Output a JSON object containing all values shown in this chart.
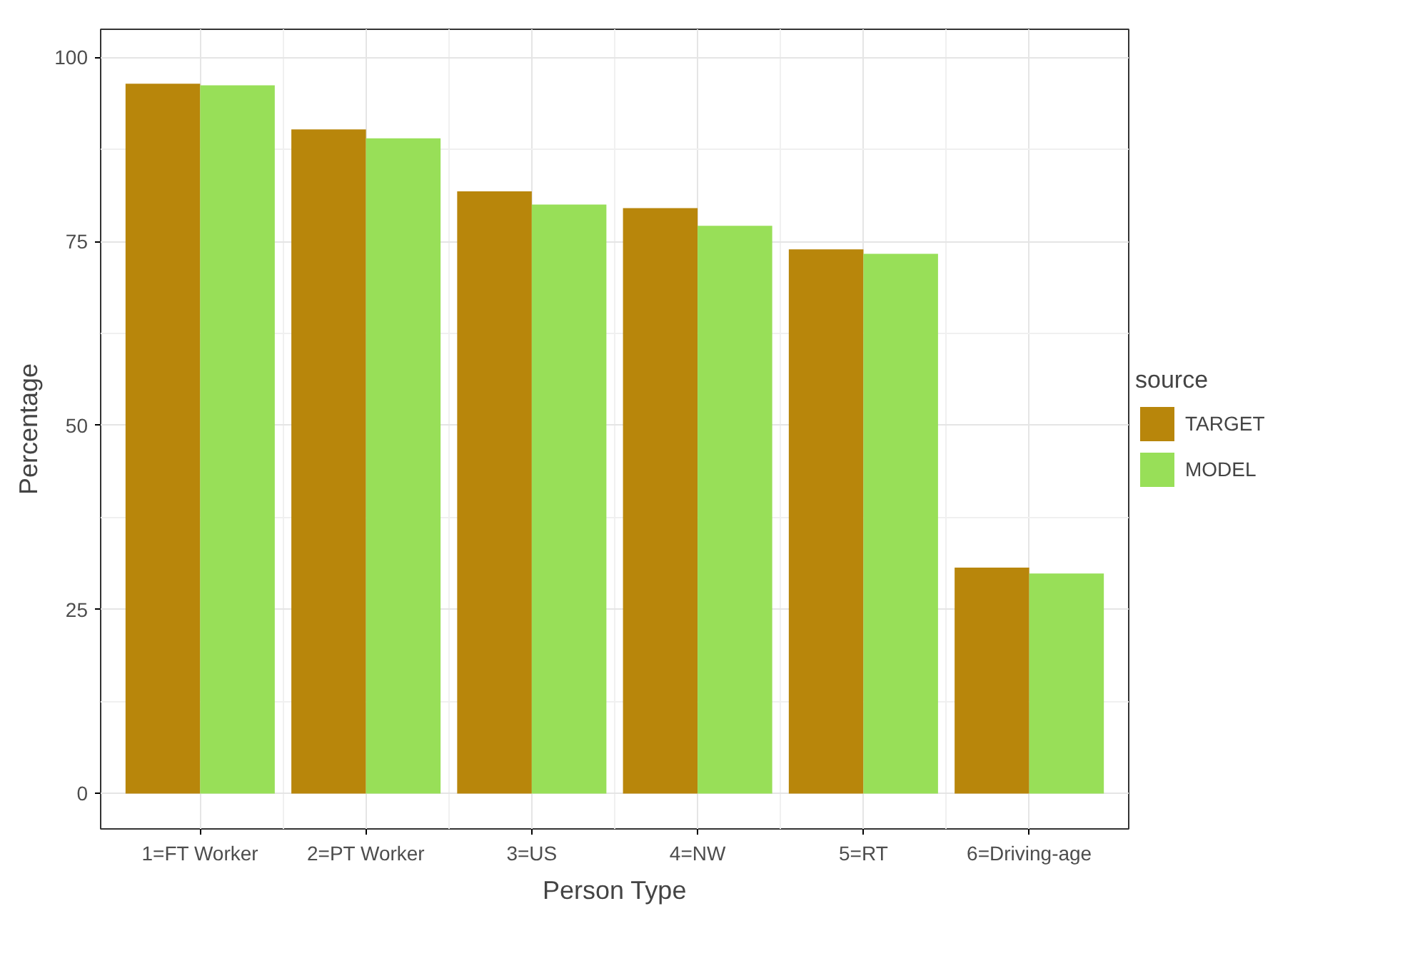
{
  "chart_data": {
    "type": "bar",
    "xlabel": "Person Type",
    "ylabel": "Percentage",
    "legend_title": "source",
    "categories": [
      "1=FT Worker",
      "2=PT Worker",
      "3=US",
      "4=NW",
      "5=RT",
      "6=Driving-age"
    ],
    "series": [
      {
        "name": "TARGET",
        "color": "#b8860b",
        "values": [
          96.4,
          90.2,
          81.8,
          79.5,
          73.9,
          30.7
        ]
      },
      {
        "name": "MODEL",
        "color": "#98df58",
        "values": [
          96.2,
          89.0,
          80.0,
          77.1,
          73.3,
          29.9
        ]
      }
    ],
    "ylim": [
      -4.8,
      103.8
    ],
    "yticks": [
      0,
      25,
      50,
      75,
      100
    ],
    "grid": true,
    "legend": "right"
  }
}
